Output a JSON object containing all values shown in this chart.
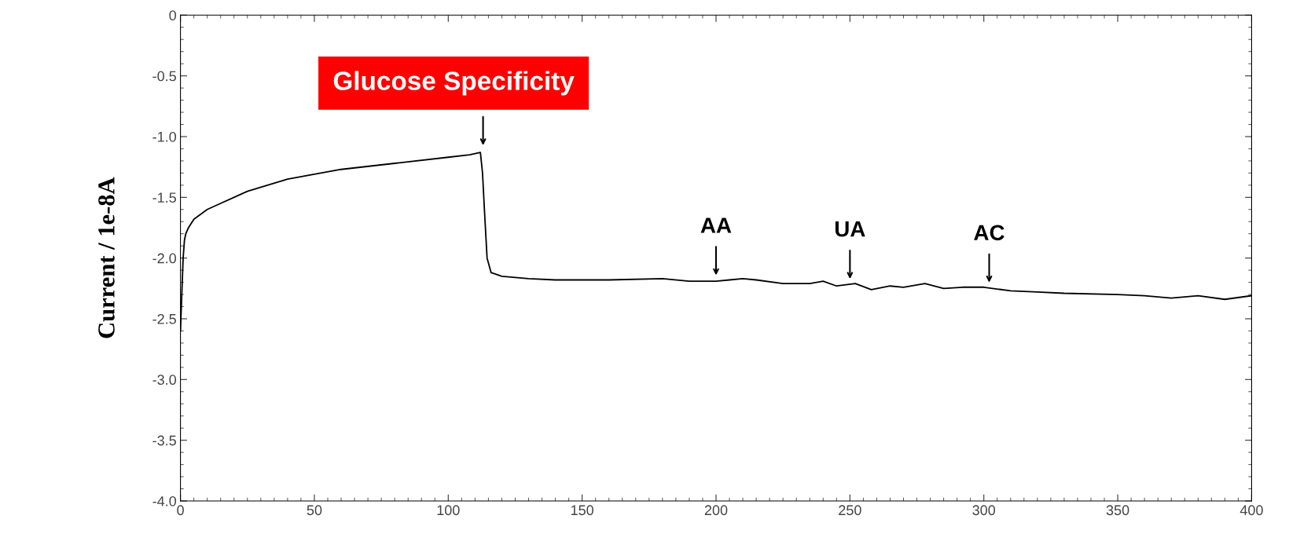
{
  "chart_data": {
    "type": "line",
    "ylabel": "Current / 1e-8A",
    "x": [
      0,
      0.5,
      1,
      1.5,
      2,
      3,
      5,
      10,
      15,
      25,
      40,
      60,
      80,
      100,
      108,
      112,
      112.8,
      113.5,
      114.5,
      116,
      120,
      130,
      140,
      160,
      180,
      190,
      200,
      205,
      210,
      215,
      225,
      235,
      240,
      245,
      252,
      258,
      265,
      270,
      278,
      285,
      292,
      300,
      310,
      320,
      330,
      350,
      360,
      370,
      380,
      390,
      400
    ],
    "series": [
      {
        "color": "#000000",
        "values": [
          -2.6,
          -2.3,
          -2.0,
          -1.85,
          -1.8,
          -1.75,
          -1.68,
          -1.6,
          -1.55,
          -1.45,
          -1.35,
          -1.27,
          -1.22,
          -1.17,
          -1.15,
          -1.13,
          -1.3,
          -1.6,
          -2.0,
          -2.12,
          -2.15,
          -2.17,
          -2.18,
          -2.18,
          -2.17,
          -2.19,
          -2.19,
          -2.18,
          -2.17,
          -2.18,
          -2.21,
          -2.21,
          -2.19,
          -2.23,
          -2.21,
          -2.26,
          -2.23,
          -2.24,
          -2.21,
          -2.25,
          -2.24,
          -2.24,
          -2.27,
          -2.28,
          -2.29,
          -2.3,
          -2.31,
          -2.33,
          -2.31,
          -2.34,
          -2.31
        ]
      }
    ],
    "xlim": [
      0,
      400
    ],
    "xticks": [
      0,
      50,
      100,
      150,
      200,
      250,
      300,
      350,
      400
    ],
    "ylim": [
      -4.0,
      0
    ],
    "yticks": [
      {
        "value": -4.0,
        "label": "-4.0"
      },
      {
        "value": -3.5,
        "label": "-3.5"
      },
      {
        "value": -3.0,
        "label": "-3.0"
      },
      {
        "value": -2.5,
        "label": "-2.5"
      },
      {
        "value": -2.0,
        "label": "-2.0"
      },
      {
        "value": -1.5,
        "label": "-1.5"
      },
      {
        "value": -1.0,
        "label": "-1.0"
      },
      {
        "value": -0.5,
        "label": "-0.5"
      },
      {
        "value": 0,
        "label": "0"
      }
    ],
    "grid": false,
    "marker": "none",
    "line_style": "solid",
    "annotations": [
      {
        "text": "Glucose Specificity",
        "x": 113,
        "y": -1.12
      },
      {
        "text": "AA",
        "x": 200,
        "y": -2.19
      },
      {
        "text": "UA",
        "x": 250,
        "y": -2.22
      },
      {
        "text": "AC",
        "x": 302,
        "y": -2.25
      }
    ]
  }
}
